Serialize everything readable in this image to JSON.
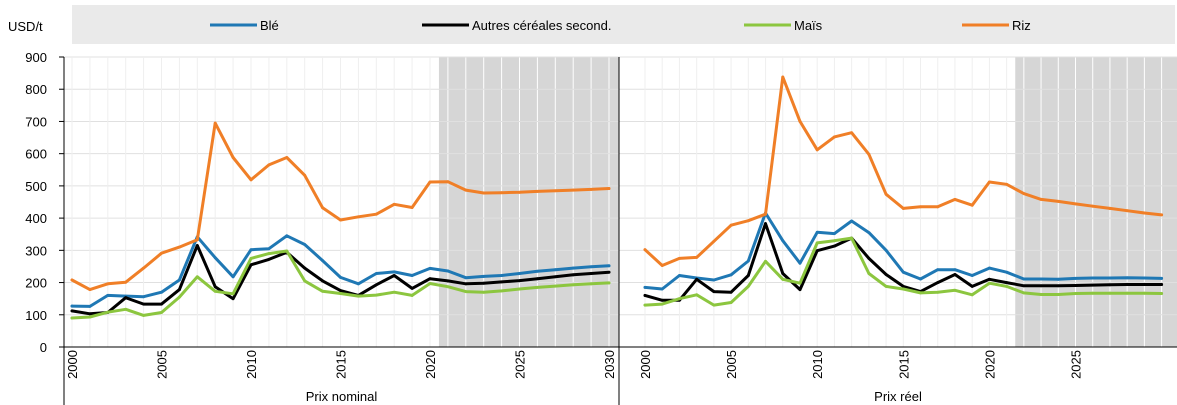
{
  "chart_data": {
    "type": "line",
    "ylabel": "USD/t",
    "ylim": [
      0,
      900
    ],
    "yticks": [
      0,
      100,
      200,
      300,
      400,
      500,
      600,
      700,
      800,
      900
    ],
    "grid": true,
    "legend_position": "top",
    "legend_background": "#eaeaea",
    "projection_shade_color": "#d6d6d6",
    "colors": {
      "ble": "#1f78b4",
      "autres": "#000000",
      "mais": "#8cc63f",
      "riz": "#f07f27"
    },
    "legend": [
      {
        "key": "ble",
        "label": "Blé"
      },
      {
        "key": "autres",
        "label": "Autres céréales second."
      },
      {
        "key": "mais",
        "label": "Maïs"
      },
      {
        "key": "riz",
        "label": "Riz"
      }
    ],
    "panels": [
      {
        "label": "Prix nominal",
        "years": [
          2000,
          2001,
          2002,
          2003,
          2004,
          2005,
          2006,
          2007,
          2008,
          2009,
          2010,
          2011,
          2012,
          2013,
          2014,
          2015,
          2016,
          2017,
          2018,
          2019,
          2020,
          2021,
          2022,
          2023,
          2024,
          2025,
          2026,
          2027,
          2028,
          2029,
          2030
        ],
        "xticks": [
          2000,
          2005,
          2010,
          2015,
          2020,
          2025,
          2030
        ],
        "projection_start": 2020.5,
        "series": [
          {
            "key": "ble",
            "values": [
              127,
              126,
              160,
              158,
              156,
              170,
              208,
              342,
              277,
              218,
              302,
              305,
              345,
              318,
              268,
              216,
              196,
              228,
              233,
              222,
              244,
              236,
              215,
              219,
              222,
              228,
              235,
              240,
              245,
              249,
              252
            ]
          },
          {
            "key": "autres",
            "values": [
              112,
              103,
              107,
              153,
              133,
              133,
              178,
              315,
              187,
              150,
              255,
              272,
              294,
              245,
              205,
              175,
              160,
              193,
              222,
              182,
              212,
              205,
              196,
              198,
              202,
              206,
              212,
              218,
              224,
              228,
              232
            ]
          },
          {
            "key": "mais",
            "values": [
              90,
              93,
              108,
              117,
              98,
              107,
              155,
              218,
              173,
              165,
              275,
              290,
              298,
              205,
              173,
              166,
              158,
              161,
              170,
              160,
              197,
              187,
              172,
              170,
              174,
              180,
              185,
              189,
              193,
              196,
              199
            ]
          },
          {
            "key": "riz",
            "values": [
              208,
              178,
              196,
              201,
              245,
              291,
              310,
              333,
              695,
              588,
              519,
              565,
              588,
              533,
              432,
              394,
              404,
              412,
              443,
              433,
              512,
              513,
              487,
              478,
              479,
              480,
              483,
              485,
              487,
              489,
              492
            ]
          }
        ]
      },
      {
        "label": "Prix réel",
        "years": [
          2000,
          2001,
          2002,
          2003,
          2004,
          2005,
          2006,
          2007,
          2008,
          2009,
          2010,
          2011,
          2012,
          2013,
          2014,
          2015,
          2016,
          2017,
          2018,
          2019,
          2020,
          2021,
          2022,
          2023,
          2024,
          2025,
          2026,
          2027,
          2028,
          2029,
          2030
        ],
        "xticks": [
          2000,
          2005,
          2010,
          2015,
          2020,
          2025
        ],
        "projection_start": 2021.5,
        "series": [
          {
            "key": "ble",
            "values": [
              185,
              180,
              222,
              214,
              208,
              224,
              267,
              416,
              330,
              260,
              356,
              352,
              391,
              355,
              300,
              232,
              211,
              240,
              240,
              222,
              245,
              232,
              211,
              211,
              210,
              213,
              214,
              214,
              215,
              214,
              213
            ]
          },
          {
            "key": "autres",
            "values": [
              160,
              145,
              145,
              210,
              172,
              170,
              222,
              383,
              228,
              178,
              299,
              313,
              338,
              275,
              225,
              188,
              172,
              200,
              225,
              188,
              210,
              200,
              190,
              190,
              190,
              191,
              192,
              193,
              194,
              194,
              194
            ]
          },
          {
            "key": "mais",
            "values": [
              130,
              133,
              150,
              162,
              130,
              138,
              188,
              266,
              210,
              198,
              323,
              330,
              338,
              228,
              188,
              180,
              168,
              170,
              176,
              162,
              198,
              188,
              168,
              163,
              163,
              166,
              167,
              167,
              167,
              167,
              166
            ]
          },
          {
            "key": "riz",
            "values": [
              302,
              253,
              275,
              278,
              328,
              378,
              392,
              412,
              838,
              700,
              612,
              652,
              665,
              598,
              474,
              430,
              435,
              435,
              458,
              440,
              512,
              505,
              476,
              458,
              452,
              444,
              437,
              430,
              423,
              416,
              410
            ]
          }
        ]
      }
    ]
  }
}
